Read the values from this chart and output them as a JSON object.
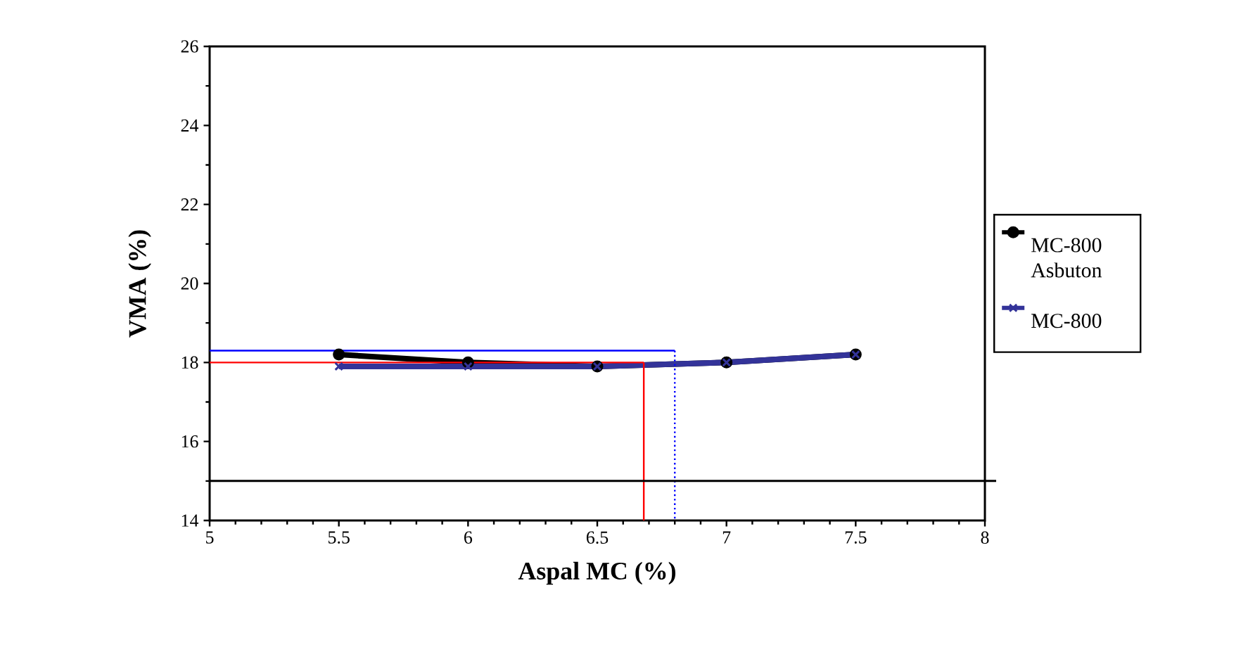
{
  "chart_data": {
    "type": "line",
    "xlabel": "Aspal MC (%)",
    "ylabel": "VMA (%)",
    "xlim": [
      5,
      8
    ],
    "ylim": [
      14,
      26
    ],
    "xticks": [
      5,
      5.5,
      6,
      6.5,
      7,
      7.5,
      8
    ],
    "yticks": [
      14,
      16,
      18,
      20,
      22,
      24,
      26
    ],
    "legend": "right",
    "grid": false,
    "series": [
      {
        "name": "MC-800 Asbuton",
        "color": "#000000",
        "marker": "circle",
        "x": [
          5.5,
          6,
          6.5,
          7,
          7.5
        ],
        "values": [
          18.2,
          18.0,
          17.9,
          18.0,
          18.2
        ]
      },
      {
        "name": "MC-800",
        "color": "#333399",
        "marker": "cross",
        "x": [
          5.5,
          6,
          6.5,
          7,
          7.5
        ],
        "values": [
          17.9,
          17.9,
          17.9,
          18.0,
          18.2
        ]
      },
      {
        "color": "#ff0000",
        "line_style": "solid",
        "x": [
          5,
          6.68
        ],
        "values": [
          18,
          18
        ]
      },
      {
        "color": "#ff0000",
        "line_style": "solid",
        "x": [
          6.68,
          6.68
        ],
        "values": [
          18,
          14
        ]
      },
      {
        "color": "#0000ff",
        "line_style": "solid",
        "x": [
          5,
          6.8
        ],
        "values": [
          18.3,
          18.3
        ]
      },
      {
        "color": "#0000ff",
        "line_style": "dotted",
        "x": [
          6.8,
          6.8
        ],
        "values": [
          18.3,
          14
        ]
      }
    ],
    "ref_lines": [
      {
        "axis": "y",
        "value": 15,
        "color": "#000000"
      }
    ]
  }
}
